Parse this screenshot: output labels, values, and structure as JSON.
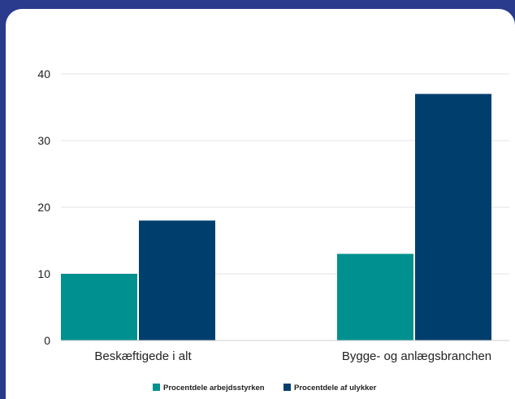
{
  "chart_data": {
    "type": "bar",
    "title": "",
    "xlabel": "",
    "ylabel": "",
    "categories": [
      "Beskæftigede i alt",
      "Bygge- og anlægsbranchen"
    ],
    "series": [
      {
        "name": "Procentdele arbejdsstyrken",
        "values": [
          10,
          13
        ],
        "color": "#00908f"
      },
      {
        "name": "Procentdele af ulykker",
        "values": [
          18,
          37
        ],
        "color": "#003e6e"
      }
    ],
    "ylim": [
      0,
      40
    ],
    "yticks": [
      0,
      10,
      20,
      30,
      40
    ],
    "grid": true,
    "legend": "bottom-center"
  }
}
